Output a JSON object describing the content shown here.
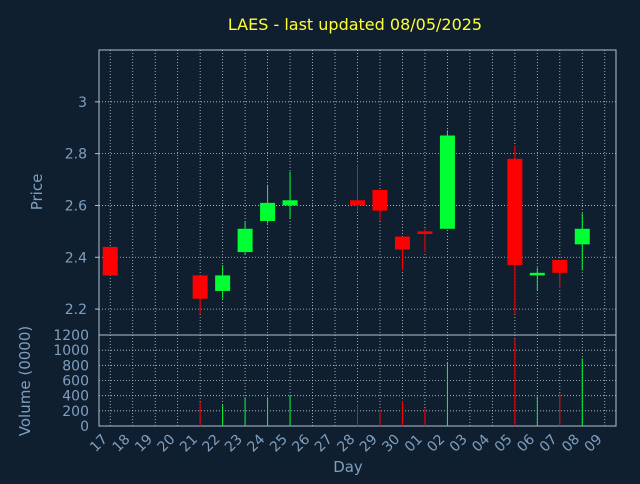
{
  "colors": {
    "background": "#0f1f30",
    "grid": "#c8c8c8",
    "frame": "#b0c0d0",
    "text": "#7f9fbf",
    "title": "#ffff33",
    "up": "#00ff33",
    "down": "#ff0000"
  },
  "chart_data": {
    "type": "candlestick",
    "title": "LAES - last updated 08/05/2025",
    "xlabel": "Day",
    "ylabel": "Price",
    "volume_label": "Volume (0000)",
    "price_ylim": [
      2.1,
      3.2
    ],
    "price_ticks": [
      "2.2",
      "2.4",
      "2.6",
      "2.8",
      "3"
    ],
    "volume_ylim": [
      0,
      1200
    ],
    "volume_ticks": [
      "0",
      "200",
      "400",
      "600",
      "800",
      "1000",
      "1200"
    ],
    "grid": true,
    "days": [
      "17",
      "18",
      "19",
      "20",
      "21",
      "22",
      "23",
      "24",
      "25",
      "26",
      "27",
      "28",
      "29",
      "30",
      "01",
      "02",
      "03",
      "04",
      "05",
      "06",
      "07",
      "08",
      "09"
    ],
    "candles": [
      {
        "day": "17",
        "open": 2.44,
        "high": 2.44,
        "low": 2.33,
        "close": 2.33,
        "volume": 0
      },
      {
        "day": "21",
        "open": 2.33,
        "high": 2.33,
        "low": 2.18,
        "close": 2.24,
        "volume": 320
      },
      {
        "day": "22",
        "open": 2.27,
        "high": 2.37,
        "low": 2.24,
        "close": 2.33,
        "volume": 280
      },
      {
        "day": "23",
        "open": 2.42,
        "high": 2.54,
        "low": 2.41,
        "close": 2.51,
        "volume": 380
      },
      {
        "day": "24",
        "open": 2.54,
        "high": 2.68,
        "low": 2.53,
        "close": 2.61,
        "volume": 380
      },
      {
        "day": "25",
        "open": 2.6,
        "high": 2.73,
        "low": 2.55,
        "close": 2.62,
        "volume": 410
      },
      {
        "day": "28",
        "open": 2.62,
        "high": 2.76,
        "low": 2.58,
        "close": 2.6,
        "volume": 290
      },
      {
        "day": "29",
        "open": 2.66,
        "high": 2.66,
        "low": 2.54,
        "close": 2.58,
        "volume": 210
      },
      {
        "day": "30",
        "open": 2.48,
        "high": 2.48,
        "low": 2.35,
        "close": 2.43,
        "volume": 330
      },
      {
        "day": "01",
        "open": 2.5,
        "high": 2.51,
        "low": 2.42,
        "close": 2.49,
        "volume": 230
      },
      {
        "day": "02",
        "open": 2.51,
        "high": 2.89,
        "low": 2.51,
        "close": 2.87,
        "volume": 840
      },
      {
        "day": "05",
        "open": 2.78,
        "high": 2.83,
        "low": 2.18,
        "close": 2.37,
        "volume": 1150
      },
      {
        "day": "06",
        "open": 2.33,
        "high": 2.36,
        "low": 2.27,
        "close": 2.34,
        "volume": 390
      },
      {
        "day": "07",
        "open": 2.39,
        "high": 2.39,
        "low": 2.28,
        "close": 2.34,
        "volume": 430
      },
      {
        "day": "08",
        "open": 2.45,
        "high": 2.57,
        "low": 2.35,
        "close": 2.51,
        "volume": 890
      }
    ]
  }
}
